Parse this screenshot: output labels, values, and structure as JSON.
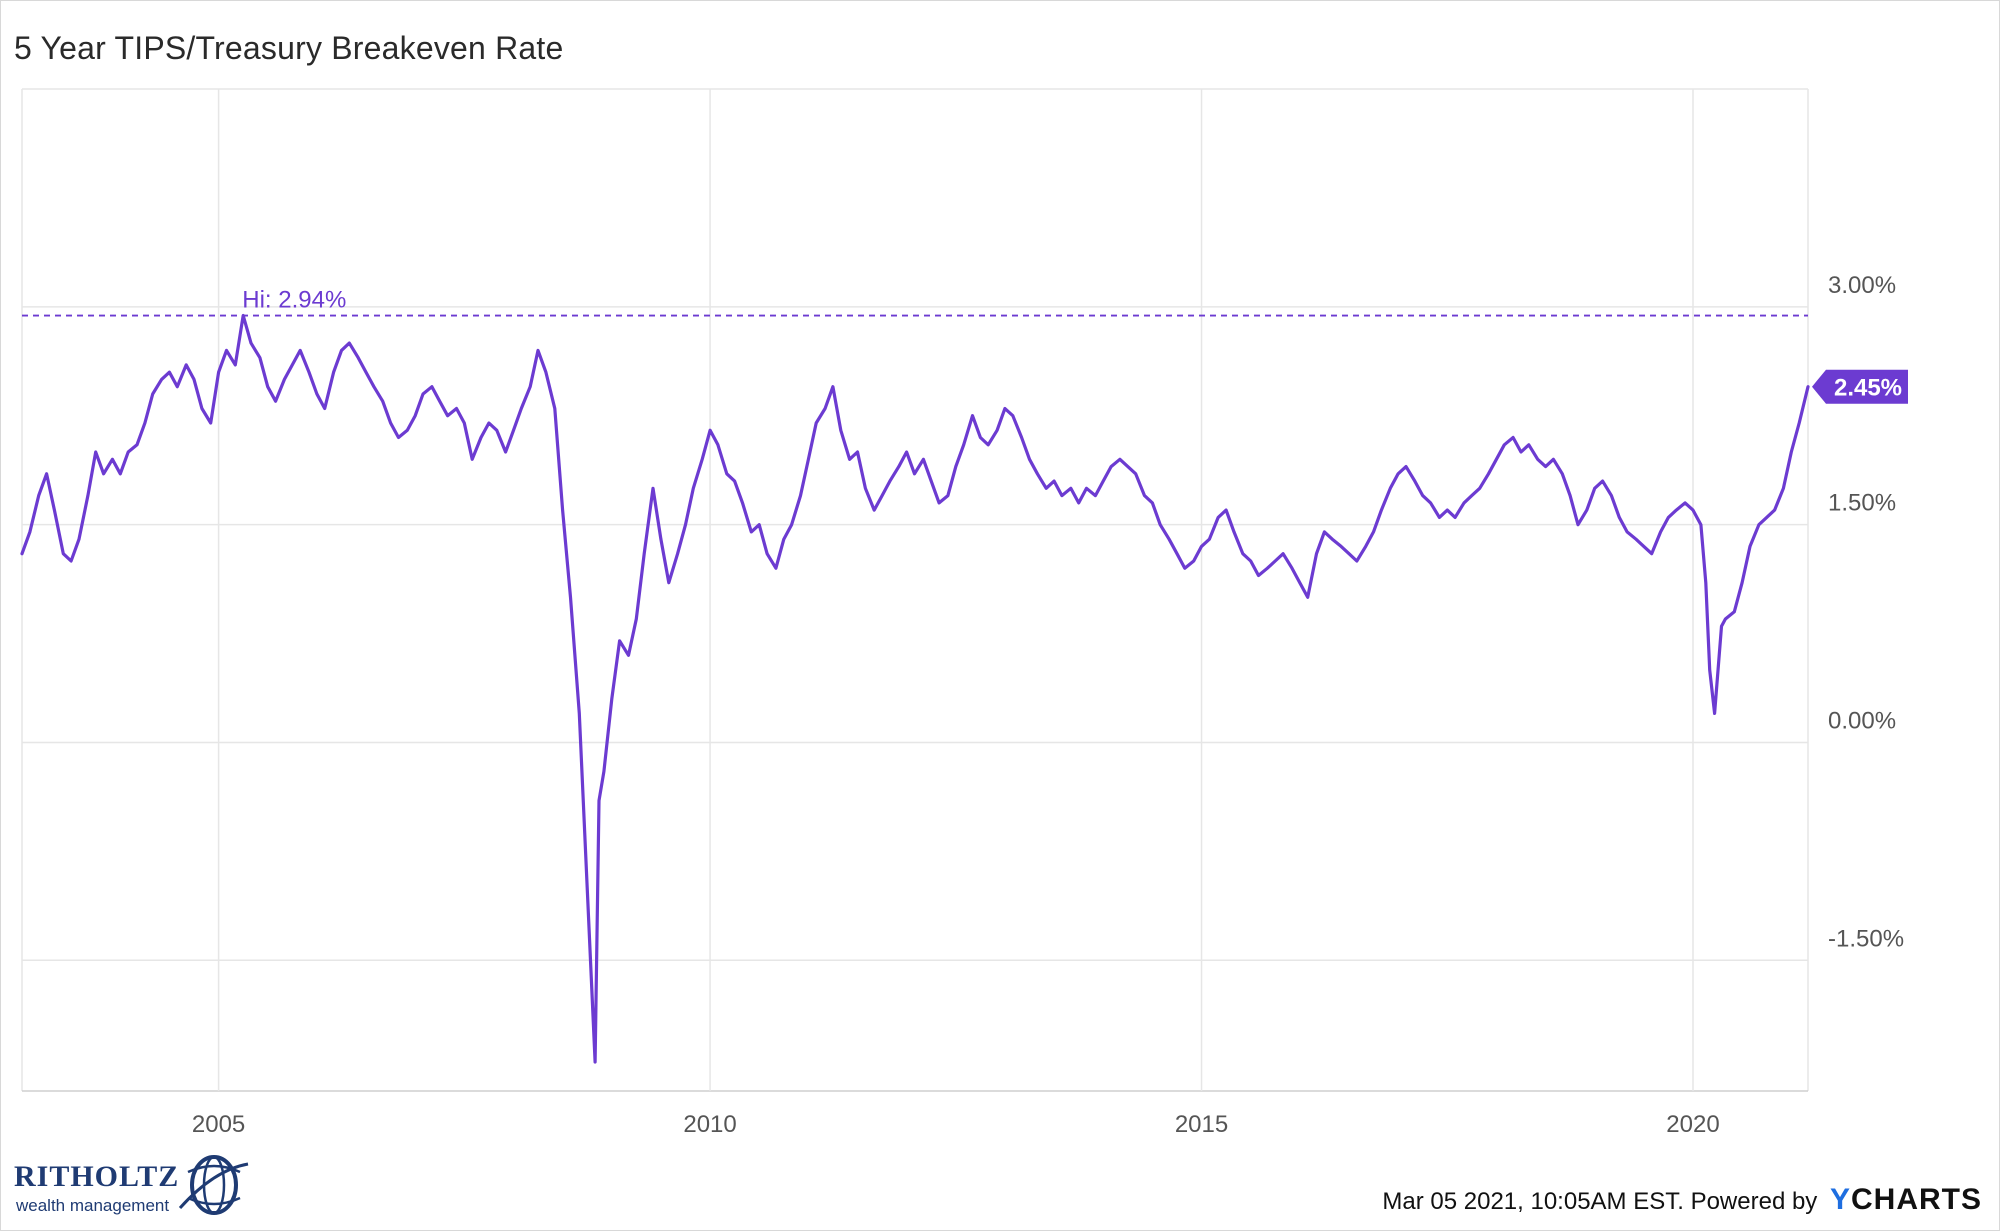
{
  "title": "5 Year TIPS/Treasury Breakeven Rate",
  "footer": {
    "timestamp": "Mar 05 2021, 10:05AM EST.",
    "powered_by": "Powered by",
    "brand_y": "Y",
    "brand_rest": "CHARTS"
  },
  "logo": {
    "name": "RITHOLTZ",
    "tagline": "wealth management"
  },
  "colors": {
    "line": "#6c3bd1",
    "grid": "#e6e6e6",
    "axis_text": "#555555",
    "badge_bg": "#6c3bd1"
  },
  "chart_data": {
    "type": "line",
    "title": "5 Year TIPS/Treasury Breakeven Rate",
    "xlabel": "",
    "ylabel": "",
    "x_tick_labels": [
      "2005",
      "2010",
      "2015",
      "2020"
    ],
    "y_tick_labels": [
      "3.00%",
      "1.50%",
      "0.00%",
      "-1.50%"
    ],
    "x_ticks": [
      2005,
      2010,
      2015,
      2020
    ],
    "y_ticks": [
      3.0,
      1.5,
      0.0,
      -1.5
    ],
    "xlim": [
      2003.0,
      2021.17
    ],
    "ylim": [
      -2.4,
      4.5
    ],
    "y_axis_side": "right",
    "grid": true,
    "high_marker": {
      "label": "Hi: 2.94%",
      "value": 2.94,
      "date": 2005.2
    },
    "last_value_label": "2.45%",
    "series": [
      {
        "values_unit": "percent",
        "points": [
          [
            2003.0,
            1.3
          ],
          [
            2003.08,
            1.45
          ],
          [
            2003.17,
            1.7
          ],
          [
            2003.25,
            1.85
          ],
          [
            2003.33,
            1.6
          ],
          [
            2003.42,
            1.3
          ],
          [
            2003.5,
            1.25
          ],
          [
            2003.58,
            1.4
          ],
          [
            2003.67,
            1.7
          ],
          [
            2003.75,
            2.0
          ],
          [
            2003.83,
            1.85
          ],
          [
            2003.92,
            1.95
          ],
          [
            2004.0,
            1.85
          ],
          [
            2004.08,
            2.0
          ],
          [
            2004.17,
            2.05
          ],
          [
            2004.25,
            2.2
          ],
          [
            2004.33,
            2.4
          ],
          [
            2004.42,
            2.5
          ],
          [
            2004.5,
            2.55
          ],
          [
            2004.58,
            2.45
          ],
          [
            2004.67,
            2.6
          ],
          [
            2004.75,
            2.5
          ],
          [
            2004.83,
            2.3
          ],
          [
            2004.92,
            2.2
          ],
          [
            2005.0,
            2.55
          ],
          [
            2005.08,
            2.7
          ],
          [
            2005.17,
            2.6
          ],
          [
            2005.25,
            2.94
          ],
          [
            2005.33,
            2.75
          ],
          [
            2005.42,
            2.65
          ],
          [
            2005.5,
            2.45
          ],
          [
            2005.58,
            2.35
          ],
          [
            2005.67,
            2.5
          ],
          [
            2005.75,
            2.6
          ],
          [
            2005.83,
            2.7
          ],
          [
            2005.92,
            2.55
          ],
          [
            2006.0,
            2.4
          ],
          [
            2006.08,
            2.3
          ],
          [
            2006.17,
            2.55
          ],
          [
            2006.25,
            2.7
          ],
          [
            2006.33,
            2.75
          ],
          [
            2006.42,
            2.65
          ],
          [
            2006.5,
            2.55
          ],
          [
            2006.58,
            2.45
          ],
          [
            2006.67,
            2.35
          ],
          [
            2006.75,
            2.2
          ],
          [
            2006.83,
            2.1
          ],
          [
            2006.92,
            2.15
          ],
          [
            2007.0,
            2.25
          ],
          [
            2007.08,
            2.4
          ],
          [
            2007.17,
            2.45
          ],
          [
            2007.25,
            2.35
          ],
          [
            2007.33,
            2.25
          ],
          [
            2007.42,
            2.3
          ],
          [
            2007.5,
            2.2
          ],
          [
            2007.58,
            1.95
          ],
          [
            2007.67,
            2.1
          ],
          [
            2007.75,
            2.2
          ],
          [
            2007.83,
            2.15
          ],
          [
            2007.92,
            2.0
          ],
          [
            2008.0,
            2.15
          ],
          [
            2008.08,
            2.3
          ],
          [
            2008.17,
            2.45
          ],
          [
            2008.25,
            2.7
          ],
          [
            2008.33,
            2.55
          ],
          [
            2008.42,
            2.3
          ],
          [
            2008.5,
            1.6
          ],
          [
            2008.58,
            1.0
          ],
          [
            2008.67,
            0.2
          ],
          [
            2008.75,
            -1.0
          ],
          [
            2008.83,
            -2.2
          ],
          [
            2008.87,
            -0.4
          ],
          [
            2008.92,
            -0.2
          ],
          [
            2009.0,
            0.3
          ],
          [
            2009.08,
            0.7
          ],
          [
            2009.17,
            0.6
          ],
          [
            2009.25,
            0.85
          ],
          [
            2009.33,
            1.3
          ],
          [
            2009.42,
            1.75
          ],
          [
            2009.5,
            1.4
          ],
          [
            2009.58,
            1.1
          ],
          [
            2009.67,
            1.3
          ],
          [
            2009.75,
            1.5
          ],
          [
            2009.83,
            1.75
          ],
          [
            2009.92,
            1.95
          ],
          [
            2010.0,
            2.15
          ],
          [
            2010.08,
            2.05
          ],
          [
            2010.17,
            1.85
          ],
          [
            2010.25,
            1.8
          ],
          [
            2010.33,
            1.65
          ],
          [
            2010.42,
            1.45
          ],
          [
            2010.5,
            1.5
          ],
          [
            2010.58,
            1.3
          ],
          [
            2010.67,
            1.2
          ],
          [
            2010.75,
            1.4
          ],
          [
            2010.83,
            1.5
          ],
          [
            2010.92,
            1.7
          ],
          [
            2011.0,
            1.95
          ],
          [
            2011.08,
            2.2
          ],
          [
            2011.17,
            2.3
          ],
          [
            2011.25,
            2.45
          ],
          [
            2011.33,
            2.15
          ],
          [
            2011.42,
            1.95
          ],
          [
            2011.5,
            2.0
          ],
          [
            2011.58,
            1.75
          ],
          [
            2011.67,
            1.6
          ],
          [
            2011.75,
            1.7
          ],
          [
            2011.83,
            1.8
          ],
          [
            2011.92,
            1.9
          ],
          [
            2012.0,
            2.0
          ],
          [
            2012.08,
            1.85
          ],
          [
            2012.17,
            1.95
          ],
          [
            2012.25,
            1.8
          ],
          [
            2012.33,
            1.65
          ],
          [
            2012.42,
            1.7
          ],
          [
            2012.5,
            1.9
          ],
          [
            2012.58,
            2.05
          ],
          [
            2012.67,
            2.25
          ],
          [
            2012.75,
            2.1
          ],
          [
            2012.83,
            2.05
          ],
          [
            2012.92,
            2.15
          ],
          [
            2013.0,
            2.3
          ],
          [
            2013.08,
            2.25
          ],
          [
            2013.17,
            2.1
          ],
          [
            2013.25,
            1.95
          ],
          [
            2013.33,
            1.85
          ],
          [
            2013.42,
            1.75
          ],
          [
            2013.5,
            1.8
          ],
          [
            2013.58,
            1.7
          ],
          [
            2013.67,
            1.75
          ],
          [
            2013.75,
            1.65
          ],
          [
            2013.83,
            1.75
          ],
          [
            2013.92,
            1.7
          ],
          [
            2014.0,
            1.8
          ],
          [
            2014.08,
            1.9
          ],
          [
            2014.17,
            1.95
          ],
          [
            2014.25,
            1.9
          ],
          [
            2014.33,
            1.85
          ],
          [
            2014.42,
            1.7
          ],
          [
            2014.5,
            1.65
          ],
          [
            2014.58,
            1.5
          ],
          [
            2014.67,
            1.4
          ],
          [
            2014.75,
            1.3
          ],
          [
            2014.83,
            1.2
          ],
          [
            2014.92,
            1.25
          ],
          [
            2015.0,
            1.35
          ],
          [
            2015.08,
            1.4
          ],
          [
            2015.17,
            1.55
          ],
          [
            2015.25,
            1.6
          ],
          [
            2015.33,
            1.45
          ],
          [
            2015.42,
            1.3
          ],
          [
            2015.5,
            1.25
          ],
          [
            2015.58,
            1.15
          ],
          [
            2015.67,
            1.2
          ],
          [
            2015.75,
            1.25
          ],
          [
            2015.83,
            1.3
          ],
          [
            2015.92,
            1.2
          ],
          [
            2016.0,
            1.1
          ],
          [
            2016.08,
            1.0
          ],
          [
            2016.17,
            1.3
          ],
          [
            2016.25,
            1.45
          ],
          [
            2016.33,
            1.4
          ],
          [
            2016.42,
            1.35
          ],
          [
            2016.5,
            1.3
          ],
          [
            2016.58,
            1.25
          ],
          [
            2016.67,
            1.35
          ],
          [
            2016.75,
            1.45
          ],
          [
            2016.83,
            1.6
          ],
          [
            2016.92,
            1.75
          ],
          [
            2017.0,
            1.85
          ],
          [
            2017.08,
            1.9
          ],
          [
            2017.17,
            1.8
          ],
          [
            2017.25,
            1.7
          ],
          [
            2017.33,
            1.65
          ],
          [
            2017.42,
            1.55
          ],
          [
            2017.5,
            1.6
          ],
          [
            2017.58,
            1.55
          ],
          [
            2017.67,
            1.65
          ],
          [
            2017.75,
            1.7
          ],
          [
            2017.83,
            1.75
          ],
          [
            2017.92,
            1.85
          ],
          [
            2018.0,
            1.95
          ],
          [
            2018.08,
            2.05
          ],
          [
            2018.17,
            2.1
          ],
          [
            2018.25,
            2.0
          ],
          [
            2018.33,
            2.05
          ],
          [
            2018.42,
            1.95
          ],
          [
            2018.5,
            1.9
          ],
          [
            2018.58,
            1.95
          ],
          [
            2018.67,
            1.85
          ],
          [
            2018.75,
            1.7
          ],
          [
            2018.83,
            1.5
          ],
          [
            2018.92,
            1.6
          ],
          [
            2019.0,
            1.75
          ],
          [
            2019.08,
            1.8
          ],
          [
            2019.17,
            1.7
          ],
          [
            2019.25,
            1.55
          ],
          [
            2019.33,
            1.45
          ],
          [
            2019.42,
            1.4
          ],
          [
            2019.5,
            1.35
          ],
          [
            2019.58,
            1.3
          ],
          [
            2019.67,
            1.45
          ],
          [
            2019.75,
            1.55
          ],
          [
            2019.83,
            1.6
          ],
          [
            2019.92,
            1.65
          ],
          [
            2020.0,
            1.6
          ],
          [
            2020.08,
            1.5
          ],
          [
            2020.13,
            1.1
          ],
          [
            2020.17,
            0.5
          ],
          [
            2020.22,
            0.2
          ],
          [
            2020.29,
            0.8
          ],
          [
            2020.33,
            0.85
          ],
          [
            2020.42,
            0.9
          ],
          [
            2020.5,
            1.1
          ],
          [
            2020.58,
            1.35
          ],
          [
            2020.67,
            1.5
          ],
          [
            2020.75,
            1.55
          ],
          [
            2020.83,
            1.6
          ],
          [
            2020.92,
            1.75
          ],
          [
            2021.0,
            2.0
          ],
          [
            2021.08,
            2.2
          ],
          [
            2021.17,
            2.45
          ]
        ]
      }
    ]
  }
}
